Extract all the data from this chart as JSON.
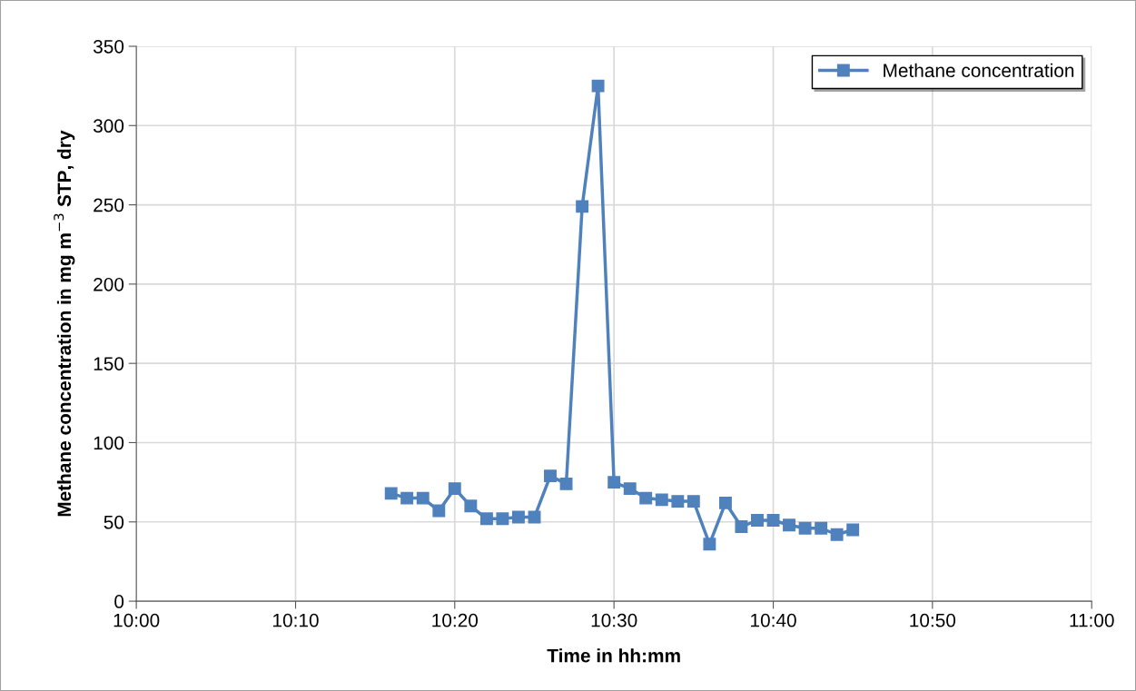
{
  "chart_data": {
    "type": "line",
    "xlabel": "Time in hh:mm",
    "ylabel": "Methane concentration in mg m$^{−3}$ STP, dry",
    "x": [
      10.2667,
      10.2833,
      10.3,
      10.3167,
      10.3333,
      10.35,
      10.3667,
      10.3833,
      10.4,
      10.4167,
      10.4333,
      10.45,
      10.4667,
      10.4833,
      10.5,
      10.5167,
      10.5333,
      10.55,
      10.5667,
      10.5833,
      10.6,
      10.6167,
      10.6333,
      10.65,
      10.6667,
      10.6833,
      10.7,
      10.7167,
      10.7333,
      10.75
    ],
    "series": [
      {
        "name": "Methane concentration",
        "color": "#4f81bd",
        "values": [
          68,
          65,
          65,
          57,
          71,
          60,
          52,
          52,
          53,
          53,
          79,
          74,
          249,
          325,
          75,
          71,
          65,
          64,
          63,
          63,
          36,
          62,
          47,
          51,
          51,
          48,
          46,
          46,
          42,
          45
        ]
      }
    ],
    "xlim": [
      10,
      11
    ],
    "xticks": [
      {
        "value": 10,
        "label": "10:00"
      },
      {
        "value": 10.1667,
        "label": "10:10"
      },
      {
        "value": 10.3333,
        "label": "10:20"
      },
      {
        "value": 10.5,
        "label": "10:30"
      },
      {
        "value": 10.6667,
        "label": "10:40"
      },
      {
        "value": 10.8333,
        "label": "10:50"
      },
      {
        "value": 11,
        "label": "11:00"
      }
    ],
    "ylim": [
      0,
      350
    ],
    "yticks": [
      0,
      50,
      100,
      150,
      200,
      250,
      300,
      350
    ],
    "grid": true,
    "legend": "top right",
    "marker": "square",
    "line_style": "solid"
  }
}
